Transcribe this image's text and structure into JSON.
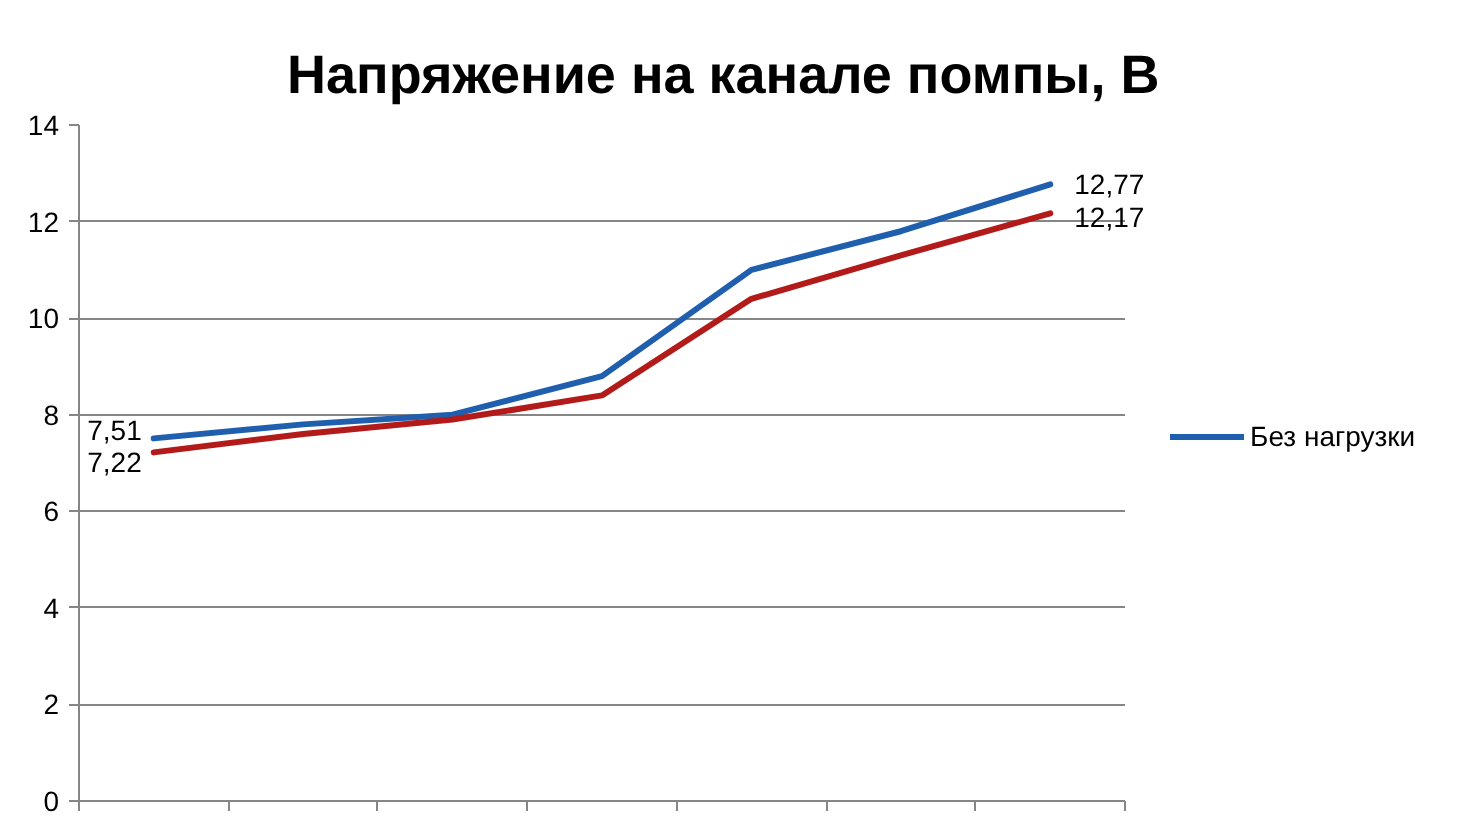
{
  "chart_data": {
    "type": "line",
    "title": "Напряжение на канале помпы, В",
    "categories": [
      null,
      null,
      null,
      null,
      null,
      null,
      null
    ],
    "series": [
      {
        "name": "Без нагрузки",
        "color": "#1f5fad",
        "values": [
          7.51,
          7.8,
          8.0,
          8.8,
          11.0,
          11.8,
          12.77
        ],
        "value_labels": [
          "7,51",
          null,
          null,
          null,
          null,
          null,
          "12,77"
        ]
      },
      {
        "color": "#b31b1b",
        "values": [
          7.22,
          7.6,
          7.9,
          8.4,
          10.4,
          11.3,
          12.17
        ],
        "value_labels": [
          "7,22",
          null,
          null,
          null,
          null,
          null,
          "12,17"
        ]
      }
    ],
    "ylim": [
      0,
      14
    ],
    "yticks": [
      0,
      2,
      4,
      6,
      8,
      10,
      12,
      14
    ],
    "grid": "y",
    "legend": "right",
    "tick_labels": "y"
  }
}
